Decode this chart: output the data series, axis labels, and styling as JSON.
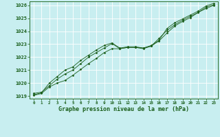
{
  "xlabel": "Graphe pression niveau de la mer (hPa)",
  "background_color": "#c8eef0",
  "grid_color": "#ffffff",
  "line_color": "#1a5e1a",
  "ylim": [
    1018.8,
    1026.3
  ],
  "xlim": [
    -0.5,
    23.5
  ],
  "yticks": [
    1019,
    1020,
    1021,
    1022,
    1023,
    1024,
    1025,
    1026
  ],
  "xticks": [
    0,
    1,
    2,
    3,
    4,
    5,
    6,
    7,
    8,
    9,
    10,
    11,
    12,
    13,
    14,
    15,
    16,
    17,
    18,
    19,
    20,
    21,
    22,
    23
  ],
  "series1": [
    1019.2,
    1019.3,
    1019.8,
    1020.3,
    1020.7,
    1021.0,
    1021.5,
    1022.0,
    1022.35,
    1022.7,
    1023.05,
    1022.65,
    1022.75,
    1022.75,
    1022.7,
    1022.85,
    1023.45,
    1024.05,
    1024.5,
    1024.85,
    1025.15,
    1025.45,
    1025.85,
    1026.05
  ],
  "series2": [
    1019.1,
    1019.25,
    1020.0,
    1020.5,
    1021.0,
    1021.25,
    1021.75,
    1022.15,
    1022.55,
    1022.9,
    1023.1,
    1022.7,
    1022.8,
    1022.8,
    1022.7,
    1022.9,
    1023.3,
    1024.2,
    1024.65,
    1024.95,
    1025.25,
    1025.55,
    1025.95,
    1026.15
  ],
  "series3": [
    1019.05,
    1019.2,
    1019.7,
    1020.0,
    1020.2,
    1020.6,
    1021.05,
    1021.5,
    1021.9,
    1022.35,
    1022.65,
    1022.65,
    1022.75,
    1022.75,
    1022.65,
    1022.85,
    1023.25,
    1023.85,
    1024.4,
    1024.75,
    1025.05,
    1025.45,
    1025.75,
    1026.0
  ]
}
